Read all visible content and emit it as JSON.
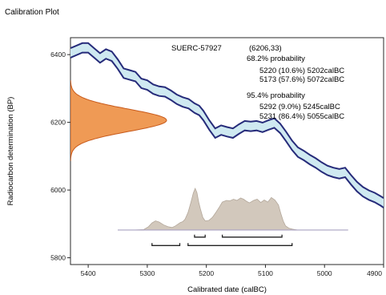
{
  "chart_data": {
    "type": "line",
    "title": "Calibration Plot",
    "xlabel": "Calibrated date (calBC)",
    "ylabel": "Radiocarbon determination (BP)",
    "xlim": [
      5430,
      4900
    ],
    "ylim": [
      5780,
      6450
    ],
    "x_reversed": true,
    "x_ticks": [
      5400,
      5300,
      5200,
      5100,
      5000,
      4900
    ],
    "x_tick_labels": [
      "5400",
      "5300",
      "5200",
      "5100",
      "5000",
      "4900"
    ],
    "y_ticks": [
      5800,
      6000,
      6200,
      6400
    ],
    "y_tick_labels": [
      "5800",
      "6000",
      "6200",
      "6400"
    ],
    "grid": false,
    "sample": {
      "id": "SUERC-57927",
      "value": "(6206,33)",
      "bp_mean": 6206,
      "bp_sigma": 33
    },
    "probability_ranges": [
      {
        "label": "68.2% probability",
        "ranges": [
          "5220 (10.6%) 5202calBC",
          "5173 (57.6%) 5072calBC"
        ],
        "intervals": [
          [
            5220,
            5202
          ],
          [
            5173,
            5072
          ]
        ]
      },
      {
        "label": "95.4% probability",
        "ranges": [
          "5292 (9.0%) 5245calBC",
          "5231 (86.4%) 5055calBC"
        ],
        "intervals": [
          [
            5292,
            5245
          ],
          [
            5231,
            5055
          ]
        ]
      }
    ],
    "calibration_curve": {
      "x": [
        5430,
        5410,
        5400,
        5390,
        5380,
        5370,
        5360,
        5350,
        5340,
        5330,
        5320,
        5310,
        5300,
        5290,
        5280,
        5270,
        5260,
        5250,
        5240,
        5230,
        5220,
        5212,
        5205,
        5195,
        5185,
        5175,
        5165,
        5155,
        5145,
        5135,
        5125,
        5115,
        5105,
        5095,
        5085,
        5075,
        5065,
        5055,
        5045,
        5035,
        5025,
        5015,
        5005,
        4995,
        4985,
        4975,
        4965,
        4955,
        4945,
        4935,
        4925,
        4915,
        4905,
        4900
      ],
      "center": [
        6405,
        6420,
        6420,
        6405,
        6390,
        6402,
        6395,
        6372,
        6345,
        6340,
        6335,
        6315,
        6310,
        6298,
        6292,
        6290,
        6280,
        6268,
        6260,
        6255,
        6242,
        6235,
        6220,
        6192,
        6168,
        6177,
        6172,
        6168,
        6180,
        6190,
        6188,
        6190,
        6185,
        6192,
        6198,
        6182,
        6158,
        6132,
        6112,
        6102,
        6090,
        6080,
        6068,
        6058,
        6052,
        6048,
        6052,
        6030,
        6010,
        5995,
        5985,
        5978,
        5968,
        5962
      ],
      "band_half_width": 14
    },
    "radiocarbon_distribution": {
      "mean": 6206,
      "sigma": 33
    },
    "calibrated_distribution": {
      "x": [
        5350,
        5320,
        5306,
        5298,
        5292,
        5286,
        5280,
        5272,
        5265,
        5258,
        5252,
        5248,
        5244,
        5240,
        5236,
        5231,
        5226,
        5222,
        5219,
        5216,
        5213,
        5210,
        5206,
        5202,
        5196,
        5190,
        5184,
        5178,
        5173,
        5166,
        5160,
        5154,
        5148,
        5142,
        5137,
        5132,
        5127,
        5120,
        5114,
        5108,
        5102,
        5096,
        5090,
        5084,
        5078,
        5074,
        5070,
        5066,
        5060,
        5054,
        5046,
        5030,
        4995
      ],
      "prob": [
        0,
        0,
        0.01,
        0.08,
        0.17,
        0.22,
        0.19,
        0.12,
        0.08,
        0.06,
        0.1,
        0.14,
        0.18,
        0.2,
        0.26,
        0.42,
        0.67,
        0.89,
        1.0,
        0.9,
        0.67,
        0.5,
        0.3,
        0.22,
        0.23,
        0.3,
        0.42,
        0.55,
        0.67,
        0.71,
        0.7,
        0.74,
        0.71,
        0.77,
        0.74,
        0.69,
        0.65,
        0.71,
        0.74,
        0.66,
        0.72,
        0.67,
        0.78,
        0.72,
        0.6,
        0.4,
        0.22,
        0.1,
        0.04,
        0.02,
        0,
        0,
        0
      ]
    },
    "colors": {
      "curve_line": "#262b7a",
      "curve_fill": "#cfe9f1",
      "bp_fill": "#ef9a55",
      "bp_edge": "#c85a1b",
      "calibrated_fill": "#d2c8bc",
      "calibrated_edge": "#b3a79a",
      "baseline": "#a9a2c2",
      "bracket": "#222222"
    }
  }
}
